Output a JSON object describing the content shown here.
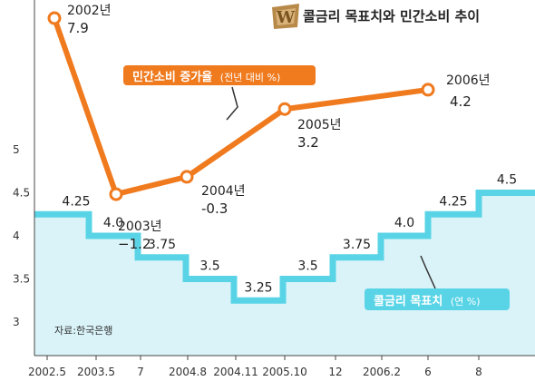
{
  "chart_data": [
    {
      "type": "line",
      "title": "콜금리 목표치와 민간소비 추이",
      "series": [
        {
          "name": "민간소비 증가율",
          "unit": "(전년 대비 %)",
          "color": "#f07a1e",
          "points": [
            {
              "x": "2002.5",
              "y": 7.9,
              "label": "2002년",
              "value_label": "7.9"
            },
            {
              "x": "2003.5",
              "y": -1.2,
              "label": "2003년",
              "value_label": "−1.2"
            },
            {
              "x": "2004.8",
              "y": -0.3,
              "label": "2004년",
              "value_label": "-0.3"
            },
            {
              "x": "2005.10",
              "y": 3.2,
              "label": "2005년",
              "value_label": "3.2"
            },
            {
              "x": "6",
              "y": 4.2,
              "label": "2006년",
              "value_label": "4.2"
            }
          ]
        }
      ]
    },
    {
      "type": "area",
      "series": [
        {
          "name": "콜금리 목표치",
          "unit": "(연 %)",
          "color": "#59d4e6",
          "fill": "#d9f3f8",
          "steps": [
            {
              "value": 4.25,
              "label": "4.25"
            },
            {
              "value": 4.0,
              "label": "4.0"
            },
            {
              "value": 3.75,
              "label": "3.75"
            },
            {
              "value": 3.5,
              "label": "3.5"
            },
            {
              "value": 3.25,
              "label": "3.25"
            },
            {
              "value": 3.5,
              "label": "3.5"
            },
            {
              "value": 3.75,
              "label": "3.75"
            },
            {
              "value": 4.0,
              "label": "4.0"
            },
            {
              "value": 4.25,
              "label": "4.25"
            },
            {
              "value": 4.5,
              "label": "4.5"
            }
          ]
        }
      ],
      "ylim": [
        3,
        5
      ],
      "y_ticks": [
        "3",
        "3.5",
        "4",
        "4.5",
        "5"
      ],
      "x_ticks": [
        "2002.5",
        "2003.5",
        "7",
        "2004.8",
        "2004.11",
        "2005.10",
        "12",
        "2006.2",
        "6",
        "8"
      ],
      "source": "자료:한국은행"
    }
  ]
}
